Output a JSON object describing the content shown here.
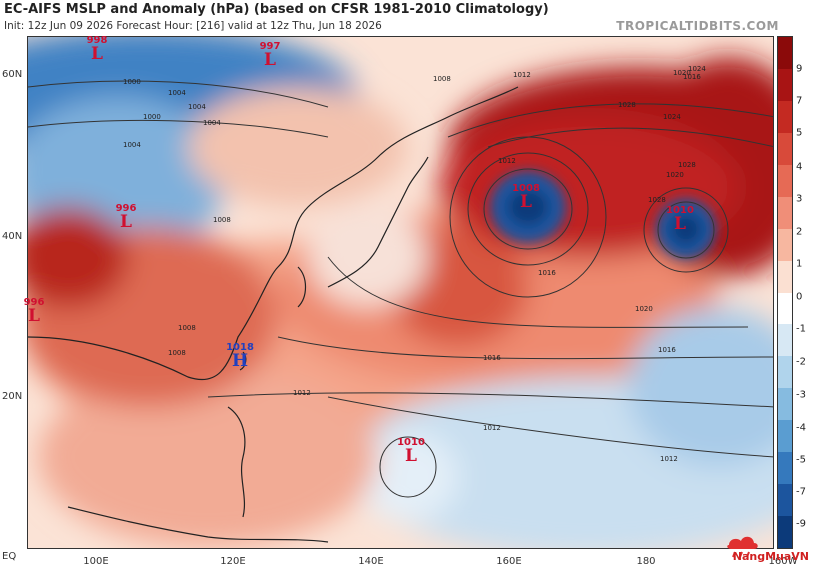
{
  "header": {
    "title": "EC-AIFS MSLP and Anomaly (hPa) (based on CFSR 1981-2010 Climatology)",
    "subtitle": "Init: 12z Jun 09 2026   Forecast Hour: [216]   valid at 12z Thu, Jun 18 2026",
    "site": "TROPICALTIDBITS.COM"
  },
  "axes": {
    "lat_labels": [
      "60N",
      "40N",
      "20N",
      "EQ"
    ],
    "lon_labels": [
      "100E",
      "120E",
      "140E",
      "160E",
      "180",
      "160W"
    ]
  },
  "colorbar": {
    "labels": [
      "9",
      "7",
      "5",
      "4",
      "3",
      "2",
      "1",
      "0",
      "-1",
      "-2",
      "-3",
      "-4",
      "-5",
      "-7",
      "-9"
    ],
    "colors": [
      "#8b0a0a",
      "#a81414",
      "#c42a22",
      "#d84a3a",
      "#e66a55",
      "#f08e78",
      "#f7b7a0",
      "#fbe0d2",
      "#ffffff",
      "#d7e8f4",
      "#b0d4ec",
      "#86bbe0",
      "#5a9dd1",
      "#3579bd",
      "#1c559e",
      "#0c3a7a"
    ]
  },
  "pressure_systems": [
    {
      "value": "998",
      "type": "L",
      "color": "red"
    },
    {
      "value": "997",
      "type": "L",
      "color": "red"
    },
    {
      "value": "996",
      "type": "L",
      "color": "red"
    },
    {
      "value": "996",
      "type": "L",
      "color": "red"
    },
    {
      "value": "1008",
      "type": "L",
      "color": "red"
    },
    {
      "value": "1010",
      "type": "L",
      "color": "red"
    },
    {
      "value": "1010",
      "type": "L",
      "color": "red"
    },
    {
      "value": "1018",
      "type": "H",
      "color": "blue"
    }
  ],
  "isobar_labels": [
    "1000",
    "1000",
    "1004",
    "1004",
    "1004",
    "1008",
    "1008",
    "1008",
    "1008",
    "1012",
    "1012",
    "1012",
    "1012",
    "1012",
    "1016",
    "1016",
    "1016",
    "1016",
    "1020",
    "1020",
    "1020",
    "1024",
    "1024",
    "1028",
    "1028",
    "1028",
    "1004"
  ],
  "watermark": "NangMuaVN"
}
